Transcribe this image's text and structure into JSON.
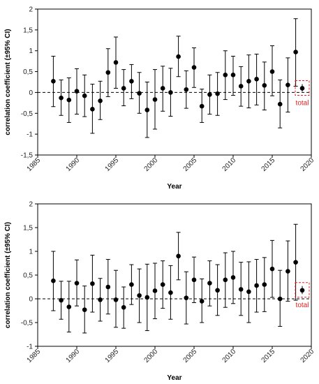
{
  "chart_data": [
    {
      "type": "scatter",
      "error_bars": "95% CI",
      "xlabel": "Year",
      "ylabel": "correlation coefficient (±95% CI)",
      "xlim": [
        1985,
        2020
      ],
      "ylim": [
        -1.5,
        2
      ],
      "x_ticks": [
        1985,
        1990,
        1995,
        2000,
        2005,
        2010,
        2015,
        2020
      ],
      "y_ticks": [
        -1.5,
        -1,
        -0.5,
        0,
        0.5,
        1,
        1.5,
        2
      ],
      "y_tick_labels": [
        "-1,5",
        "-1",
        "-0,5",
        "0",
        "0,5",
        "1",
        "1,5",
        "2"
      ],
      "reference_line": {
        "y": 0,
        "style": "dashed"
      },
      "points": [
        {
          "x": 1987,
          "y": 0.27,
          "lo": -0.34,
          "hi": 0.87
        },
        {
          "x": 1988,
          "y": -0.13,
          "lo": -0.55,
          "hi": 0.3
        },
        {
          "x": 1989,
          "y": -0.18,
          "lo": -0.72,
          "hi": 0.35
        },
        {
          "x": 1990,
          "y": 0.03,
          "lo": -0.52,
          "hi": 0.57
        },
        {
          "x": 1991,
          "y": -0.08,
          "lo": -0.58,
          "hi": 0.42
        },
        {
          "x": 1992,
          "y": -0.4,
          "lo": -0.98,
          "hi": 0.2
        },
        {
          "x": 1993,
          "y": -0.2,
          "lo": -0.65,
          "hi": 0.27
        },
        {
          "x": 1994,
          "y": 0.48,
          "lo": -0.1,
          "hi": 1.05
        },
        {
          "x": 1995,
          "y": 0.72,
          "lo": 0.1,
          "hi": 1.33
        },
        {
          "x": 1996,
          "y": 0.1,
          "lo": -0.32,
          "hi": 0.55
        },
        {
          "x": 1997,
          "y": 0.27,
          "lo": -0.15,
          "hi": 0.67
        },
        {
          "x": 1998,
          "y": -0.02,
          "lo": -0.5,
          "hi": 0.48
        },
        {
          "x": 1999,
          "y": -0.42,
          "lo": -1.08,
          "hi": 0.25
        },
        {
          "x": 2000,
          "y": -0.17,
          "lo": -0.88,
          "hi": 0.55
        },
        {
          "x": 2001,
          "y": 0.1,
          "lo": -0.45,
          "hi": 0.63
        },
        {
          "x": 2002,
          "y": 0.0,
          "lo": -0.57,
          "hi": 0.58
        },
        {
          "x": 2003,
          "y": 0.86,
          "lo": 0.38,
          "hi": 1.35
        },
        {
          "x": 2004,
          "y": 0.07,
          "lo": -0.38,
          "hi": 0.52
        },
        {
          "x": 2005,
          "y": 0.6,
          "lo": 0.12,
          "hi": 1.07
        },
        {
          "x": 2006,
          "y": -0.33,
          "lo": -0.72,
          "hi": 0.08
        },
        {
          "x": 2007,
          "y": -0.05,
          "lo": -0.52,
          "hi": 0.42
        },
        {
          "x": 2008,
          "y": -0.03,
          "lo": -0.55,
          "hi": 0.48
        },
        {
          "x": 2009,
          "y": 0.42,
          "lo": -0.17,
          "hi": 1.0
        },
        {
          "x": 2010,
          "y": 0.42,
          "lo": -0.07,
          "hi": 0.87
        },
        {
          "x": 2011,
          "y": 0.15,
          "lo": -0.33,
          "hi": 0.62
        },
        {
          "x": 2012,
          "y": 0.27,
          "lo": -0.37,
          "hi": 0.9
        },
        {
          "x": 2013,
          "y": 0.32,
          "lo": -0.3,
          "hi": 0.92
        },
        {
          "x": 2014,
          "y": 0.17,
          "lo": -0.42,
          "hi": 0.73
        },
        {
          "x": 2015,
          "y": 0.5,
          "lo": -0.08,
          "hi": 1.12
        },
        {
          "x": 2016,
          "y": -0.28,
          "lo": -0.85,
          "hi": 0.3
        },
        {
          "x": 2017,
          "y": 0.18,
          "lo": -0.47,
          "hi": 0.83
        },
        {
          "x": 2018,
          "y": 0.97,
          "lo": 0.15,
          "hi": 1.77
        }
      ],
      "total": {
        "label": "total",
        "y": 0.1,
        "lo": 0.02,
        "hi": 0.2
      },
      "colors": {
        "points": "#000000",
        "total_box": "#e02020",
        "total_text": "#e02020"
      },
      "grid": false
    },
    {
      "type": "scatter",
      "error_bars": "95% CI",
      "xlabel": "Year",
      "ylabel": "correlation coefficient (±95% CI)",
      "xlim": [
        1985,
        2020
      ],
      "ylim": [
        -1,
        2
      ],
      "x_ticks": [
        1985,
        1990,
        1995,
        2000,
        2005,
        2010,
        2015,
        2020
      ],
      "y_ticks": [
        -1,
        -0.5,
        0,
        0.5,
        1,
        1.5,
        2
      ],
      "y_tick_labels": [
        "-1",
        "-0,5",
        "0",
        "0,5",
        "1",
        "1,5",
        "2"
      ],
      "reference_line": {
        "y": 0,
        "style": "dashed"
      },
      "points": [
        {
          "x": 1987,
          "y": 0.38,
          "lo": -0.25,
          "hi": 1.0
        },
        {
          "x": 1988,
          "y": -0.03,
          "lo": -0.43,
          "hi": 0.37
        },
        {
          "x": 1989,
          "y": -0.17,
          "lo": -0.7,
          "hi": 0.37
        },
        {
          "x": 1990,
          "y": 0.33,
          "lo": -0.15,
          "hi": 0.82
        },
        {
          "x": 1991,
          "y": -0.23,
          "lo": -0.72,
          "hi": 0.27
        },
        {
          "x": 1992,
          "y": 0.32,
          "lo": -0.28,
          "hi": 0.92
        },
        {
          "x": 1993,
          "y": -0.02,
          "lo": -0.47,
          "hi": 0.43
        },
        {
          "x": 1994,
          "y": 0.25,
          "lo": -0.32,
          "hi": 0.83
        },
        {
          "x": 1995,
          "y": -0.02,
          "lo": -0.6,
          "hi": 0.6
        },
        {
          "x": 1996,
          "y": -0.18,
          "lo": -0.62,
          "hi": 0.25
        },
        {
          "x": 1997,
          "y": 0.3,
          "lo": -0.12,
          "hi": 0.72
        },
        {
          "x": 1998,
          "y": 0.07,
          "lo": -0.5,
          "hi": 0.63
        },
        {
          "x": 1999,
          "y": 0.03,
          "lo": -0.67,
          "hi": 0.73
        },
        {
          "x": 2000,
          "y": 0.17,
          "lo": -0.42,
          "hi": 0.75
        },
        {
          "x": 2001,
          "y": 0.3,
          "lo": -0.2,
          "hi": 0.8
        },
        {
          "x": 2002,
          "y": 0.13,
          "lo": -0.43,
          "hi": 0.7
        },
        {
          "x": 2003,
          "y": 0.9,
          "lo": 0.4,
          "hi": 1.4
        },
        {
          "x": 2004,
          "y": 0.02,
          "lo": -0.53,
          "hi": 0.57
        },
        {
          "x": 2005,
          "y": 0.4,
          "lo": -0.08,
          "hi": 0.88
        },
        {
          "x": 2006,
          "y": -0.05,
          "lo": -0.5,
          "hi": 0.42
        },
        {
          "x": 2007,
          "y": 0.33,
          "lo": -0.15,
          "hi": 0.8
        },
        {
          "x": 2008,
          "y": 0.18,
          "lo": -0.35,
          "hi": 0.72
        },
        {
          "x": 2009,
          "y": 0.4,
          "lo": -0.18,
          "hi": 0.97
        },
        {
          "x": 2010,
          "y": 0.45,
          "lo": -0.1,
          "hi": 1.0
        },
        {
          "x": 2011,
          "y": 0.2,
          "lo": -0.35,
          "hi": 0.77
        },
        {
          "x": 2012,
          "y": 0.15,
          "lo": -0.5,
          "hi": 0.78
        },
        {
          "x": 2013,
          "y": 0.28,
          "lo": -0.28,
          "hi": 0.83
        },
        {
          "x": 2014,
          "y": 0.3,
          "lo": -0.27,
          "hi": 0.87
        },
        {
          "x": 2015,
          "y": 0.63,
          "lo": 0.03,
          "hi": 1.23
        },
        {
          "x": 2016,
          "y": 0.0,
          "lo": -0.58,
          "hi": 0.6
        },
        {
          "x": 2017,
          "y": 0.58,
          "lo": -0.05,
          "hi": 1.22
        },
        {
          "x": 2018,
          "y": 0.77,
          "lo": -0.03,
          "hi": 1.57
        }
      ],
      "total": {
        "label": "total",
        "y": 0.18,
        "lo": 0.1,
        "hi": 0.27
      },
      "colors": {
        "points": "#000000",
        "total_box": "#e02020",
        "total_text": "#e02020"
      },
      "grid": false
    }
  ]
}
